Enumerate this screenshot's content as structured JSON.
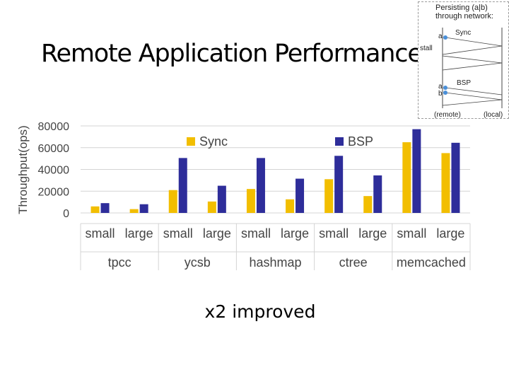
{
  "title": "Remote Application Performance",
  "caption": "x2 improved",
  "inset": {
    "caption_line1": "Persisting (a|b)",
    "caption_line2": "through network:",
    "sync_label": "Sync",
    "bsp_label": "BSP",
    "stall_label": "stall",
    "a_label": "a",
    "b_label": "b",
    "remote_label": "(remote)",
    "local_label": "(local)"
  },
  "colors": {
    "sync": "#F2BE00",
    "bsp": "#2E2D9A",
    "grid": "#d4d4d4",
    "axis_text": "#444444"
  },
  "chart_data": {
    "type": "bar",
    "ylabel": "Throughput(ops)",
    "xlabel": "",
    "ylim": [
      0,
      80000
    ],
    "y_ticks": [
      "0",
      "20000",
      "40000",
      "60000",
      "80000"
    ],
    "legend_position": "top",
    "grid": true,
    "groups": [
      "tpcc",
      "ycsb",
      "hashmap",
      "ctree",
      "memcached"
    ],
    "categories": [
      "small",
      "large",
      "small",
      "large",
      "small",
      "large",
      "small",
      "large",
      "small",
      "large"
    ],
    "series": [
      {
        "name": "Sync",
        "values": [
          6000,
          3500,
          21000,
          10500,
          22000,
          12500,
          31000,
          15500,
          65000,
          55000
        ]
      },
      {
        "name": "BSP",
        "values": [
          9000,
          8000,
          50500,
          25000,
          50500,
          31500,
          52500,
          34500,
          77000,
          64500
        ]
      }
    ]
  }
}
